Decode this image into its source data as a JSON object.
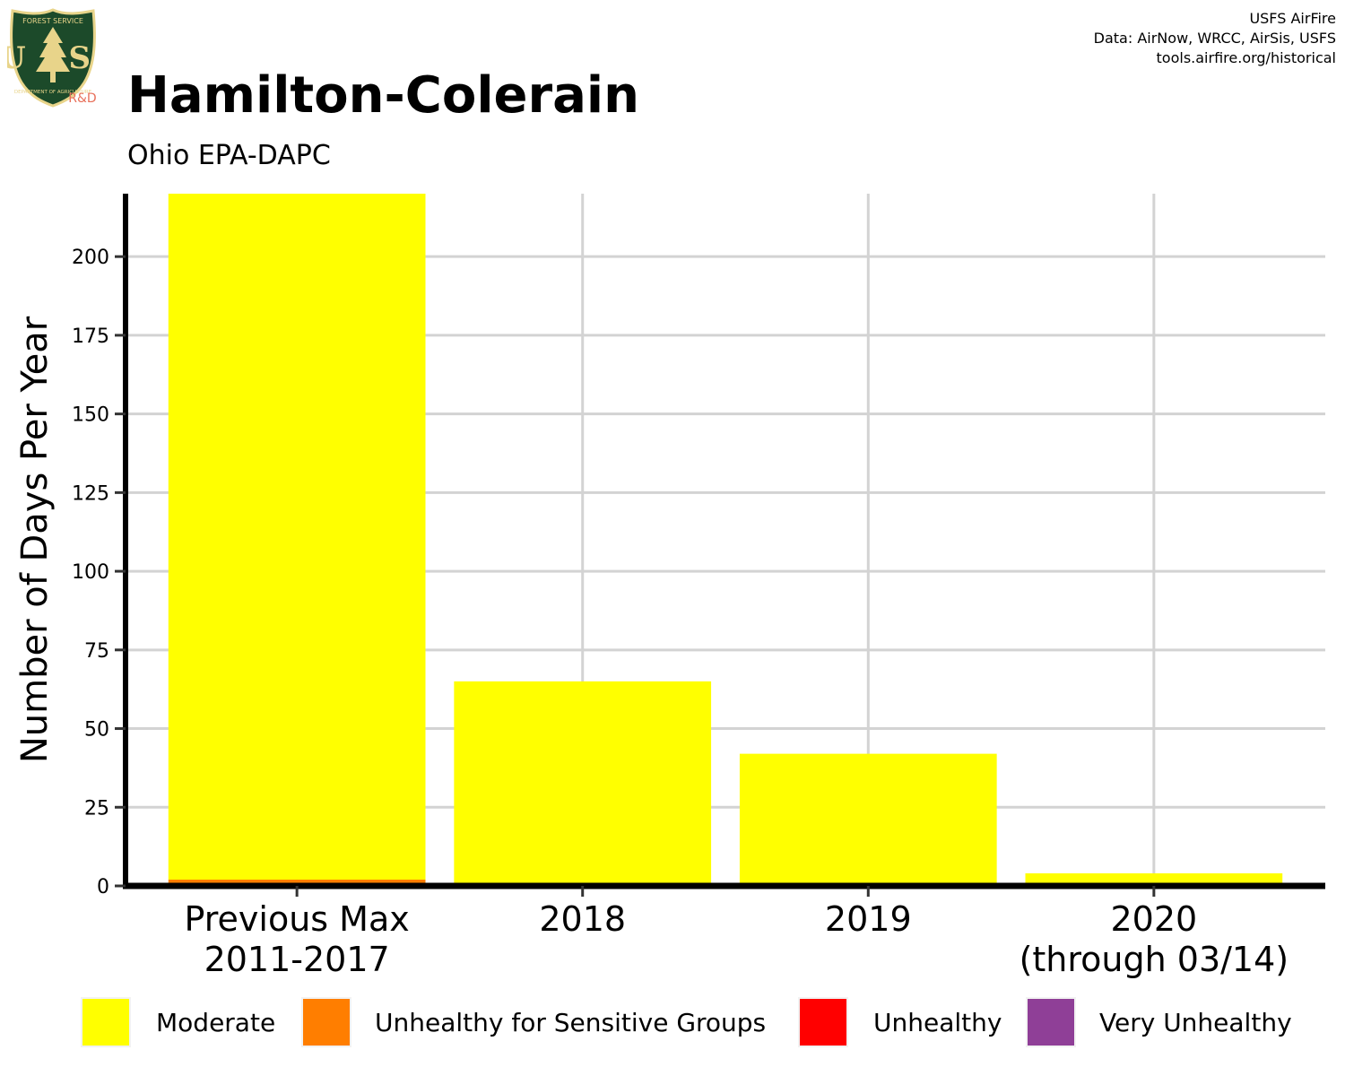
{
  "header": {
    "title": "Hamilton-Colerain",
    "subtitle": "Ohio EPA-DAPC",
    "credits": [
      "USFS AirFire",
      "Data: AirNow, WRCC, AirSis, USFS",
      "tools.airfire.org/historical"
    ],
    "logo_top": "FOREST SERVICE",
    "logo_letters": "U S",
    "logo_bottom": "DEPARTMENT OF AGRICULTURE",
    "logo_tag": "R&D"
  },
  "colors": {
    "Moderate": "#ffff00",
    "Unhealthy for Sensitive Groups": "#ff7e00",
    "Unhealthy": "#ff0000",
    "Very Unhealthy": "#8f3f97",
    "grid": "#d3d3d3",
    "logo_green": "#1c4a2a",
    "logo_gold": "#e8d48a"
  },
  "chart_data": {
    "type": "bar",
    "stacked": true,
    "title": "Hamilton-Colerain",
    "subtitle": "Ohio EPA-DAPC",
    "xlabel": "",
    "ylabel": "Number of Days Per Year",
    "categories": [
      [
        "Previous Max",
        "2011-2017"
      ],
      [
        "2018"
      ],
      [
        "2019"
      ],
      [
        "2020",
        "(through 03/14)"
      ]
    ],
    "series": [
      {
        "name": "Unhealthy for Sensitive Groups",
        "values": [
          2,
          0,
          0,
          0
        ]
      },
      {
        "name": "Moderate",
        "values": [
          218,
          65,
          42,
          4
        ]
      },
      {
        "name": "Unhealthy",
        "values": [
          0,
          0,
          0,
          0
        ]
      },
      {
        "name": "Very Unhealthy",
        "values": [
          0,
          0,
          0,
          0
        ]
      }
    ],
    "ylim": [
      0,
      220
    ],
    "yticks": [
      0,
      25,
      50,
      75,
      100,
      125,
      150,
      175,
      200
    ],
    "grid": true,
    "legend": {
      "position": "bottom",
      "entries": [
        "Moderate",
        "Unhealthy for Sensitive Groups",
        "Unhealthy",
        "Very Unhealthy"
      ]
    }
  }
}
